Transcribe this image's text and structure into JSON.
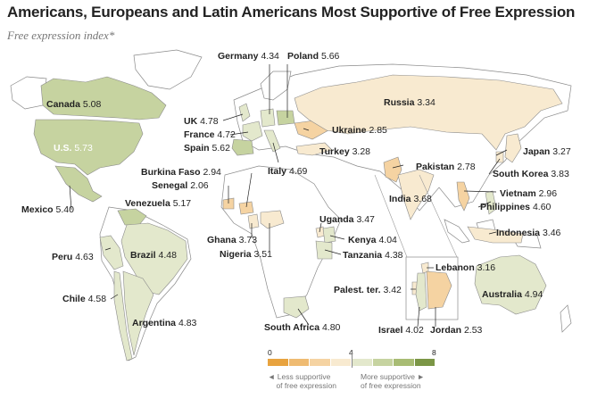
{
  "title": "Americans, Europeans and Latin Americans Most Supportive of Free Expression",
  "subtitle": "Free expression index*",
  "colors": {
    "ocean": "#ffffff",
    "land": "#ffffff",
    "border": "#8a8a8a",
    "scale": [
      "#e8a33f",
      "#efbb72",
      "#f5d3a2",
      "#f8ead0",
      "#e3e8cc",
      "#c6d3a0",
      "#a8bc74",
      "#7b9646"
    ]
  },
  "legend": {
    "min": "0",
    "mid": "4",
    "max": "8",
    "less": "Less supportive",
    "less2": "of free expression",
    "more": "More supportive",
    "more2": "of free expression"
  },
  "countries": [
    {
      "id": "canada",
      "name": "Canada",
      "value": "5.08",
      "index": 5.08
    },
    {
      "id": "us",
      "name": "U.S.",
      "value": "5.73",
      "index": 5.73
    },
    {
      "id": "mexico",
      "name": "Mexico",
      "value": "5.40",
      "index": 5.4
    },
    {
      "id": "venezuela",
      "name": "Venezuela",
      "value": "5.17",
      "index": 5.17
    },
    {
      "id": "peru",
      "name": "Peru",
      "value": "4.63",
      "index": 4.63
    },
    {
      "id": "brazil",
      "name": "Brazil",
      "value": "4.48",
      "index": 4.48
    },
    {
      "id": "chile",
      "name": "Chile",
      "value": "4.58",
      "index": 4.58
    },
    {
      "id": "argentina",
      "name": "Argentina",
      "value": "4.83",
      "index": 4.83
    },
    {
      "id": "germany",
      "name": "Germany",
      "value": "4.34",
      "index": 4.34
    },
    {
      "id": "poland",
      "name": "Poland",
      "value": "5.66",
      "index": 5.66
    },
    {
      "id": "uk",
      "name": "UK",
      "value": "4.78",
      "index": 4.78
    },
    {
      "id": "france",
      "name": "France",
      "value": "4.72",
      "index": 4.72
    },
    {
      "id": "spain",
      "name": "Spain",
      "value": "5.62",
      "index": 5.62
    },
    {
      "id": "italy",
      "name": "Italy",
      "value": "4.69",
      "index": 4.69
    },
    {
      "id": "russia",
      "name": "Russia",
      "value": "3.34",
      "index": 3.34
    },
    {
      "id": "ukraine",
      "name": "Ukraine",
      "value": "2.85",
      "index": 2.85
    },
    {
      "id": "turkey",
      "name": "Turkey",
      "value": "3.28",
      "index": 3.28
    },
    {
      "id": "burkina",
      "name": "Burkina Faso",
      "value": "2.94",
      "index": 2.94
    },
    {
      "id": "senegal",
      "name": "Senegal",
      "value": "2.06",
      "index": 2.06
    },
    {
      "id": "ghana",
      "name": "Ghana",
      "value": "3.73",
      "index": 3.73
    },
    {
      "id": "nigeria",
      "name": "Nigeria",
      "value": "3.51",
      "index": 3.51
    },
    {
      "id": "uganda",
      "name": "Uganda",
      "value": "3.47",
      "index": 3.47
    },
    {
      "id": "kenya",
      "name": "Kenya",
      "value": "4.04",
      "index": 4.04
    },
    {
      "id": "tanzania",
      "name": "Tanzania",
      "value": "4.38",
      "index": 4.38
    },
    {
      "id": "southafrica",
      "name": "South Africa",
      "value": "4.80",
      "index": 4.8
    },
    {
      "id": "pakistan",
      "name": "Pakistan",
      "value": "2.78",
      "index": 2.78
    },
    {
      "id": "india",
      "name": "India",
      "value": "3.68",
      "index": 3.68
    },
    {
      "id": "japan",
      "name": "Japan",
      "value": "3.27",
      "index": 3.27
    },
    {
      "id": "southkorea",
      "name": "South Korea",
      "value": "3.83",
      "index": 3.83
    },
    {
      "id": "vietnam",
      "name": "Vietnam",
      "value": "2.96",
      "index": 2.96
    },
    {
      "id": "philippines",
      "name": "Philippines",
      "value": "4.60",
      "index": 4.6
    },
    {
      "id": "indonesia",
      "name": "Indonesia",
      "value": "3.46",
      "index": 3.46
    },
    {
      "id": "lebanon",
      "name": "Lebanon",
      "value": "3.16",
      "index": 3.16
    },
    {
      "id": "palestine",
      "name": "Palest. ter.",
      "value": "3.42",
      "index": 3.42
    },
    {
      "id": "israel",
      "name": "Israel",
      "value": "4.02",
      "index": 4.02
    },
    {
      "id": "jordan",
      "name": "Jordan",
      "value": "2.53",
      "index": 2.53
    },
    {
      "id": "australia",
      "name": "Australia",
      "value": "4.94",
      "index": 4.94
    }
  ]
}
